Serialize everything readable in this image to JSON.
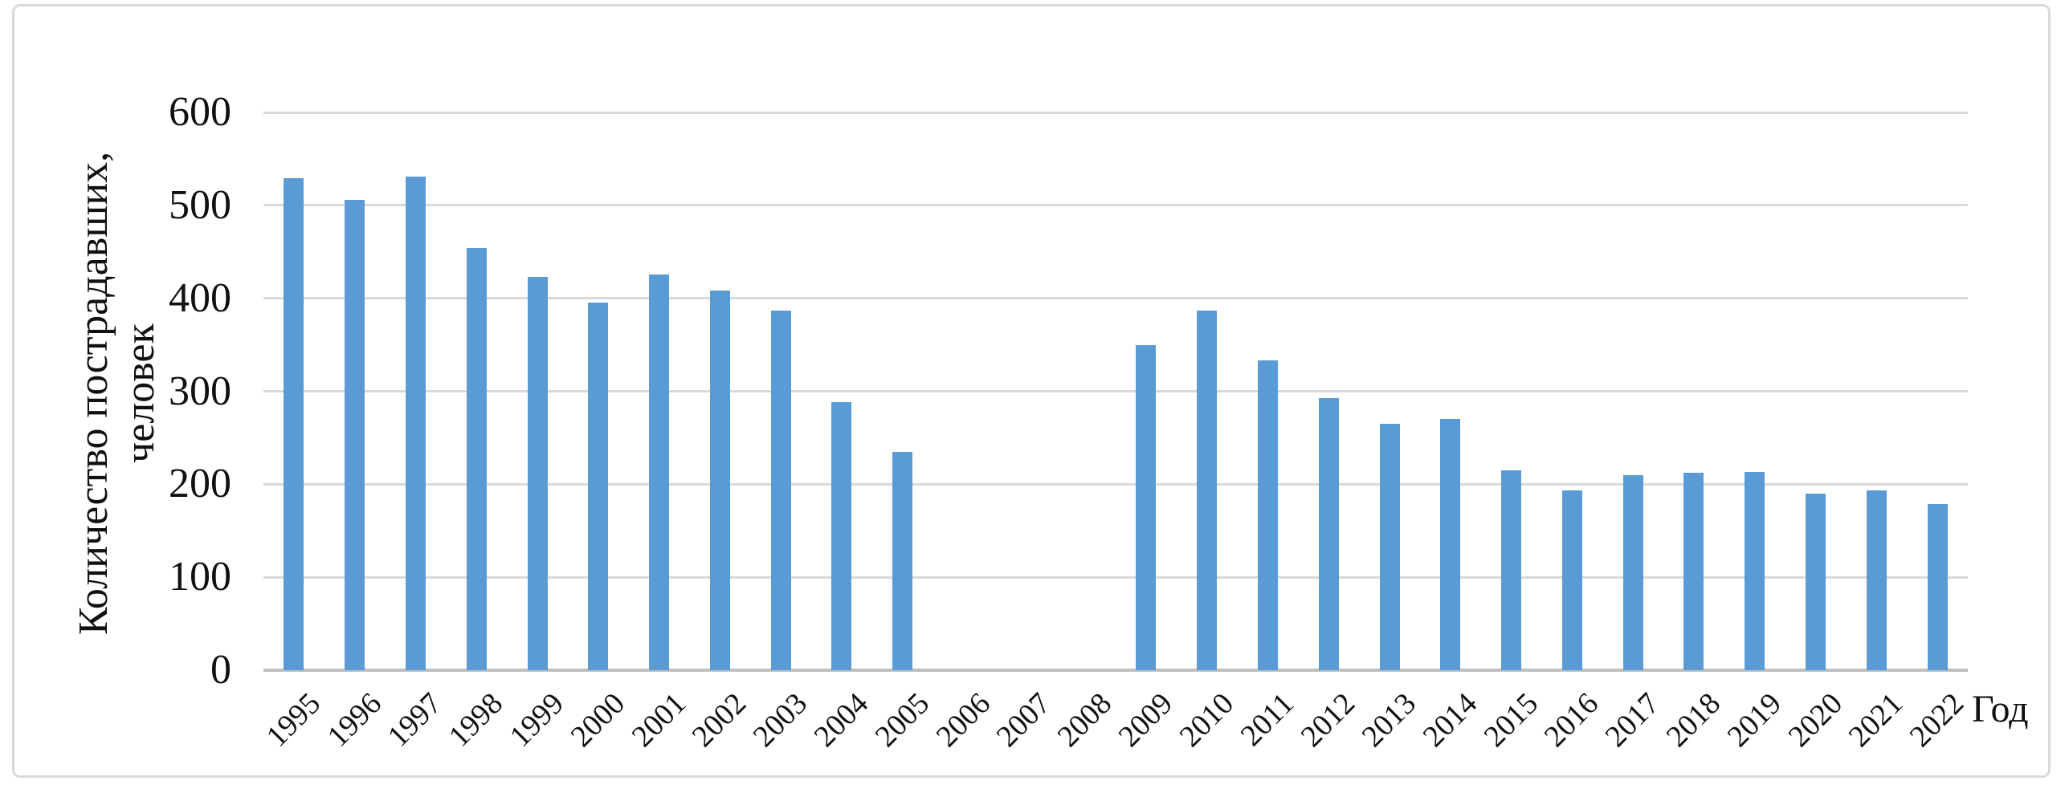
{
  "figure": {
    "bar_color": "#5B9BD5",
    "gridline_color": "#D9D9D9",
    "axis_line_color": "#BFBFBF",
    "border_color": "#D9D9D9",
    "background_color": "#FFFFFF",
    "text_color": "#111111"
  },
  "chart_data": {
    "type": "bar",
    "title": "",
    "categories": [
      "1995",
      "1996",
      "1997",
      "1998",
      "1999",
      "2000",
      "2001",
      "2002",
      "2003",
      "2004",
      "2005",
      "2006",
      "2007",
      "2008",
      "2009",
      "2010",
      "2011",
      "2012",
      "2013",
      "2014",
      "2015",
      "2016",
      "2017",
      "2018",
      "2019",
      "2020",
      "2021",
      "2022"
    ],
    "values": [
      529,
      506,
      531,
      454,
      423,
      395,
      426,
      408,
      387,
      288,
      235,
      0,
      0,
      0,
      350,
      387,
      333,
      293,
      265,
      270,
      215,
      193,
      210,
      212,
      213,
      190,
      193,
      179
    ],
    "xlabel": "Год",
    "ylabel_lines": [
      "Количество пострадавших,",
      "человек"
    ],
    "y_ticks": [
      0,
      100,
      200,
      300,
      400,
      500,
      600
    ],
    "ylim": [
      0,
      600
    ],
    "grid": "horizontal-only",
    "legend": "none",
    "x_tick_rotation_deg": 45
  }
}
